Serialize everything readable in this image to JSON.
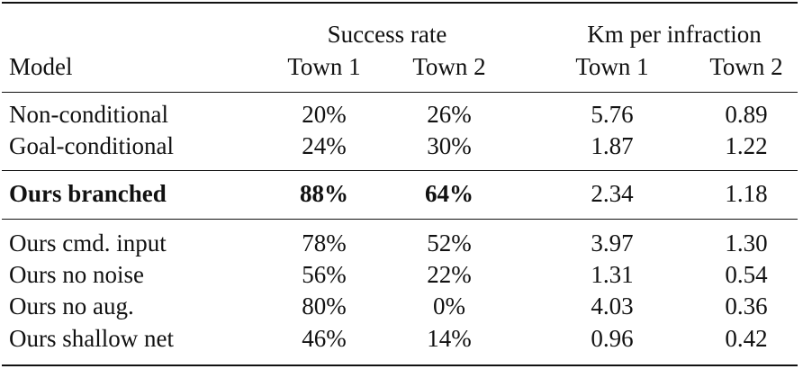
{
  "table": {
    "header": {
      "group_success": "Success rate",
      "group_km": "Km per infraction",
      "model_label": "Model",
      "town1_a": "Town 1",
      "town2_a": "Town 2",
      "town1_b": "Town 1",
      "town2_b": "Town 2"
    },
    "rows": [
      {
        "model": "Non-conditional",
        "sr_t1": "20%",
        "sr_t2": "26%",
        "km_t1": "5.76",
        "km_t2": "0.89",
        "bold": false
      },
      {
        "model": "Goal-conditional",
        "sr_t1": "24%",
        "sr_t2": "30%",
        "km_t1": "1.87",
        "km_t2": "1.22",
        "bold": false
      },
      {
        "model": "Ours branched",
        "sr_t1": "88%",
        "sr_t2": "64%",
        "km_t1": "2.34",
        "km_t2": "1.18",
        "bold": true
      },
      {
        "model": "Ours cmd. input",
        "sr_t1": "78%",
        "sr_t2": "52%",
        "km_t1": "3.97",
        "km_t2": "1.30",
        "bold": false
      },
      {
        "model": "Ours no noise",
        "sr_t1": "56%",
        "sr_t2": "22%",
        "km_t1": "1.31",
        "km_t2": "0.54",
        "bold": false
      },
      {
        "model": "Ours no aug.",
        "sr_t1": "80%",
        "sr_t2": "0%",
        "km_t1": "4.03",
        "km_t2": "0.36",
        "bold": false
      },
      {
        "model": "Ours shallow net",
        "sr_t1": "46%",
        "sr_t2": "14%",
        "km_t1": "0.96",
        "km_t2": "0.42",
        "bold": false
      }
    ]
  }
}
